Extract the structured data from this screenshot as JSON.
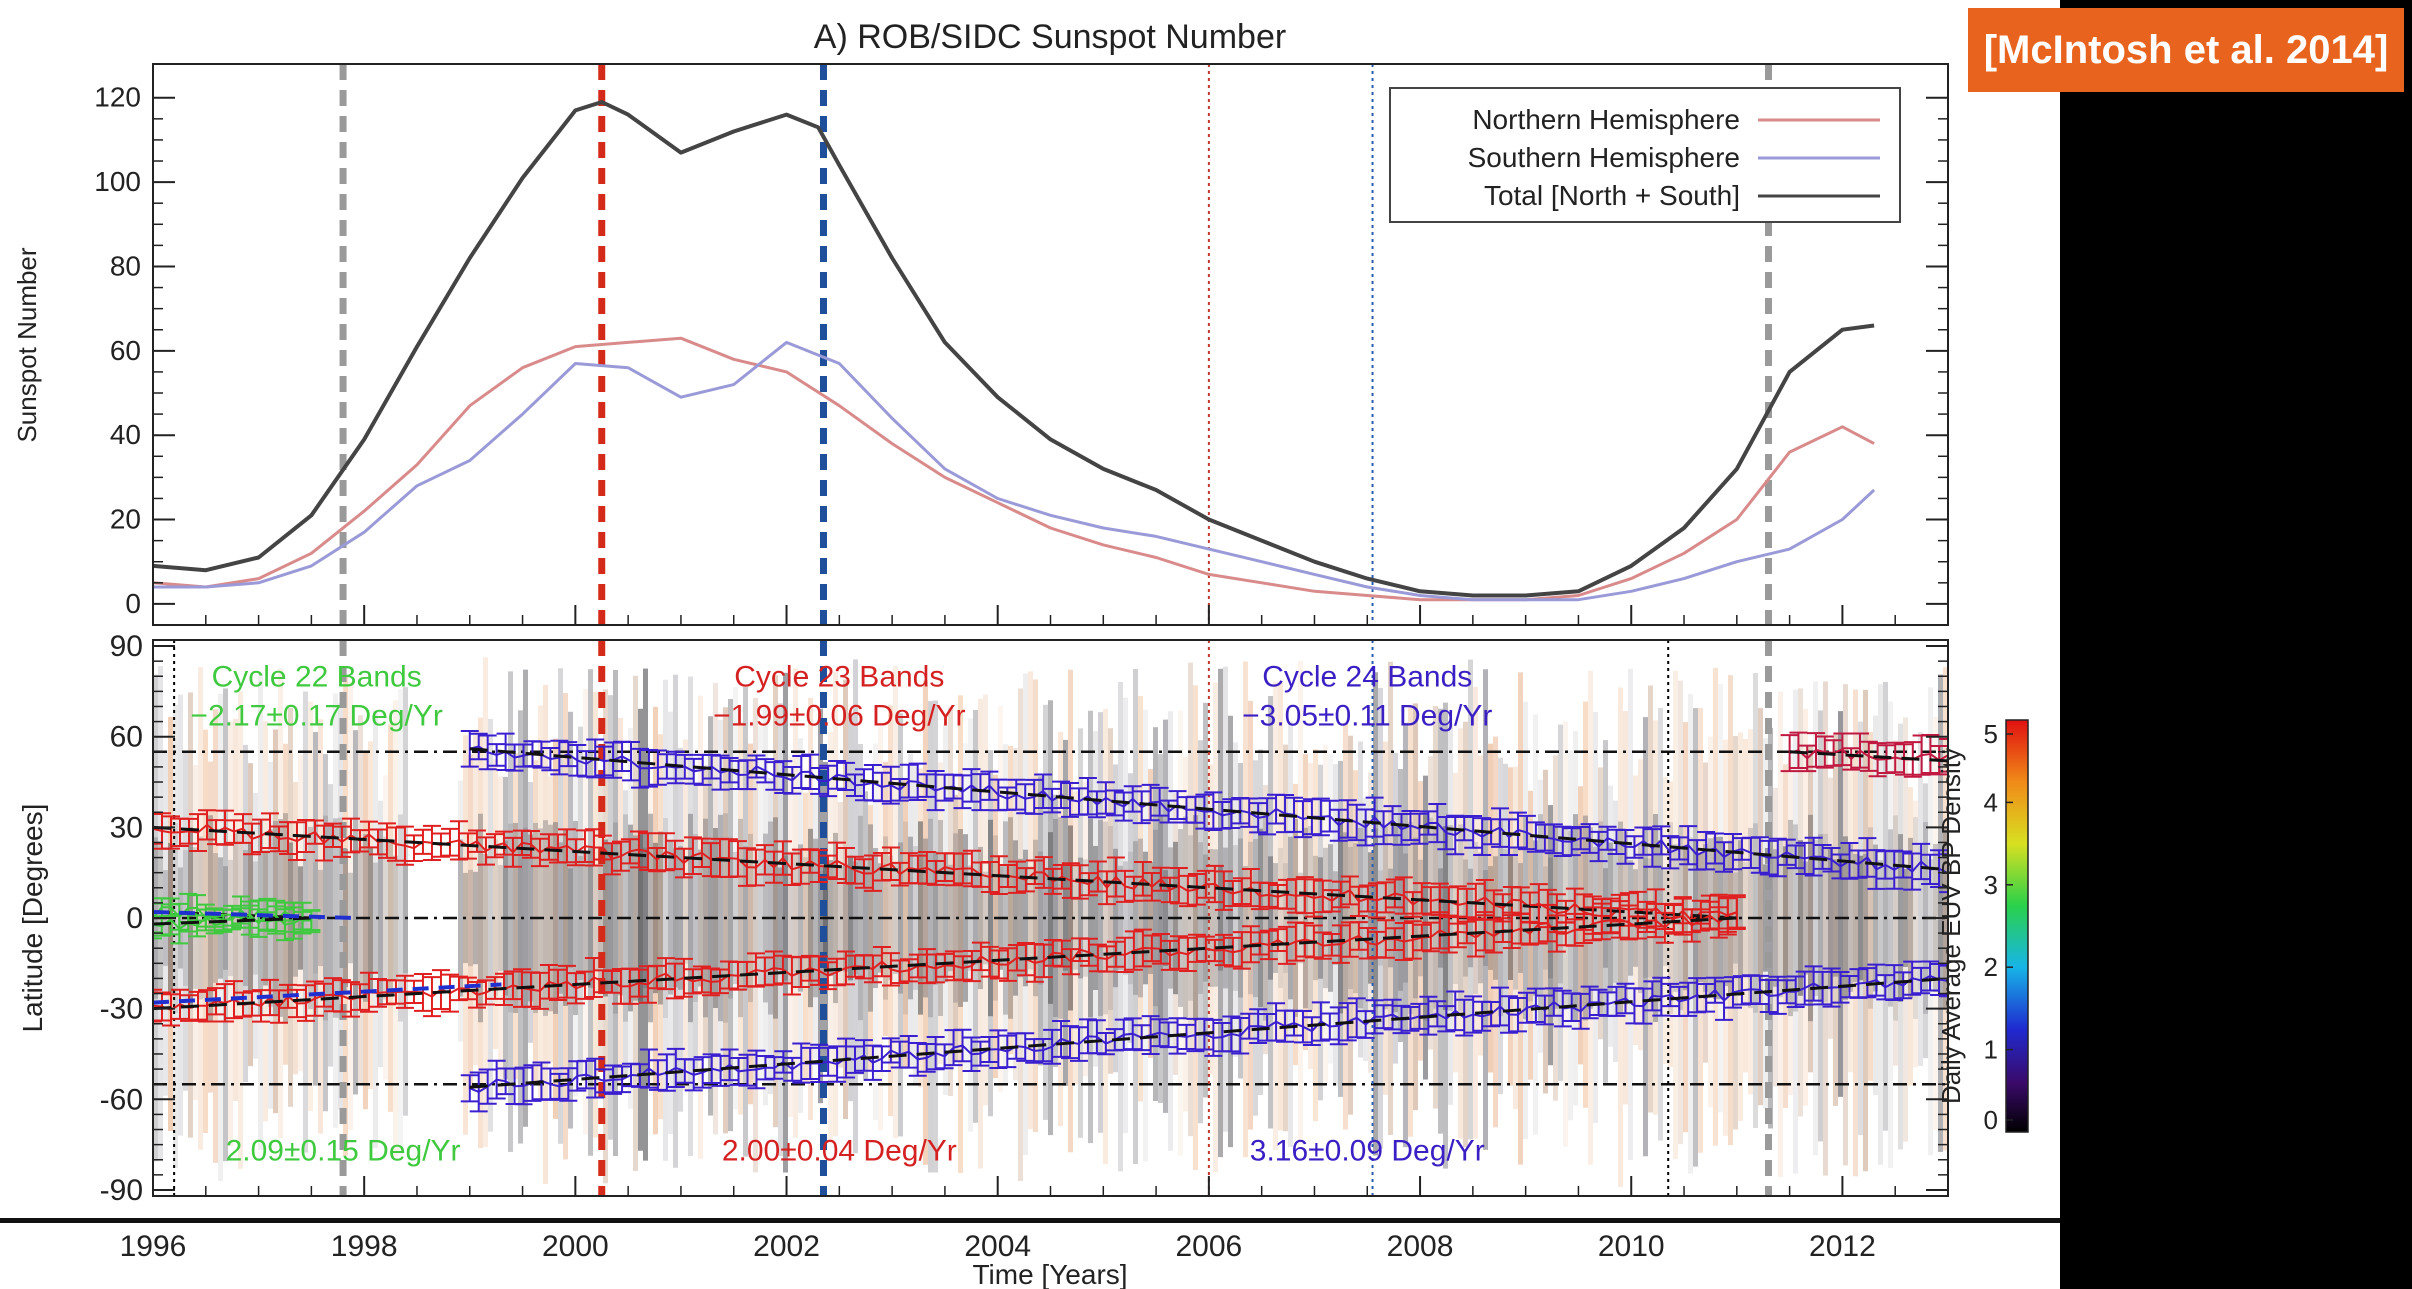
{
  "citation": "[McIntosh et al. 2014]",
  "chart_data": [
    {
      "type": "line",
      "title": "A) ROB/SIDC Sunspot Number",
      "xlabel": "",
      "ylabel": "Sunspot Number",
      "xlim": [
        1996,
        2013
      ],
      "ylim": [
        -5,
        128
      ],
      "yticks": [
        0,
        20,
        40,
        60,
        80,
        100,
        120
      ],
      "legend": "top-right",
      "series": [
        {
          "name": "Northern Hemisphere",
          "color": "#d98a8a",
          "x": [
            1996,
            1996.5,
            1997,
            1997.5,
            1998,
            1998.5,
            1999,
            1999.5,
            2000,
            2000.5,
            2001,
            2001.5,
            2002,
            2002.5,
            2003,
            2003.5,
            2004,
            2004.5,
            2005,
            2005.5,
            2006,
            2006.5,
            2007,
            2007.5,
            2008,
            2008.5,
            2009,
            2009.5,
            2010,
            2010.5,
            2011,
            2011.5,
            2012,
            2012.3
          ],
          "y": [
            5,
            4,
            6,
            12,
            22,
            33,
            47,
            56,
            61,
            62,
            63,
            58,
            55,
            47,
            38,
            30,
            24,
            18,
            14,
            11,
            7,
            5,
            3,
            2,
            1,
            1,
            1,
            2,
            6,
            12,
            20,
            36,
            42,
            38
          ]
        },
        {
          "name": "Southern Hemisphere",
          "color": "#9a9ad8",
          "x": [
            1996,
            1996.5,
            1997,
            1997.5,
            1998,
            1998.5,
            1999,
            1999.5,
            2000,
            2000.5,
            2001,
            2001.5,
            2002,
            2002.5,
            2003,
            2003.5,
            2004,
            2004.5,
            2005,
            2005.5,
            2006,
            2006.5,
            2007,
            2007.5,
            2008,
            2008.5,
            2009,
            2009.5,
            2010,
            2010.5,
            2011,
            2011.5,
            2012,
            2012.3
          ],
          "y": [
            4,
            4,
            5,
            9,
            17,
            28,
            34,
            45,
            57,
            56,
            49,
            52,
            62,
            57,
            44,
            32,
            25,
            21,
            18,
            16,
            13,
            10,
            7,
            4,
            2,
            1,
            1,
            1,
            3,
            6,
            10,
            13,
            20,
            27
          ]
        },
        {
          "name": "Total [North + South]",
          "color": "#444444",
          "x": [
            1996,
            1996.5,
            1997,
            1997.5,
            1998,
            1998.5,
            1999,
            1999.5,
            2000,
            2000.25,
            2000.5,
            2001,
            2001.5,
            2002,
            2002.3,
            2002.5,
            2003,
            2003.5,
            2004,
            2004.5,
            2005,
            2005.5,
            2006,
            2006.5,
            2007,
            2007.5,
            2008,
            2008.5,
            2009,
            2009.5,
            2010,
            2010.5,
            2011,
            2011.5,
            2012,
            2012.3
          ],
          "y": [
            9,
            8,
            11,
            21,
            39,
            61,
            82,
            101,
            117,
            119,
            116,
            107,
            112,
            116,
            113,
            104,
            82,
            62,
            49,
            39,
            32,
            27,
            20,
            15,
            10,
            6,
            3,
            2,
            2,
            3,
            9,
            18,
            32,
            55,
            65,
            66
          ]
        }
      ],
      "vlines": [
        {
          "x": 1997.8,
          "color": "#9a9a9a",
          "style": "dashed-thick"
        },
        {
          "x": 2000.25,
          "color": "#d42a1a",
          "style": "dashed-thick"
        },
        {
          "x": 2002.35,
          "color": "#1f4f9a",
          "style": "dashed-thick"
        },
        {
          "x": 2006.0,
          "color": "#c0392b",
          "style": "dotted"
        },
        {
          "x": 2007.55,
          "color": "#2a5db0",
          "style": "dotted"
        },
        {
          "x": 2011.3,
          "color": "#9a9a9a",
          "style": "dashed-thick"
        }
      ]
    },
    {
      "type": "scatter",
      "title": "",
      "xlabel": "Time [Years]",
      "ylabel": "Latitude [Degrees]",
      "xlim": [
        1996,
        2013
      ],
      "ylim": [
        -92,
        92
      ],
      "xticks": [
        1996,
        1998,
        2000,
        2002,
        2004,
        2006,
        2008,
        2010,
        2012
      ],
      "yticks": [
        -90,
        -60,
        -30,
        0,
        30,
        60,
        90
      ],
      "colorbar": {
        "label": "Daily Average EUV BP Density",
        "range": [
          0,
          5
        ],
        "ticks": [
          0,
          1,
          2,
          3,
          4,
          5
        ]
      },
      "hlines": [
        55,
        0,
        -55
      ],
      "annotations": [
        {
          "text": "Cycle 22 Bands",
          "color": "#3ec93e"
        },
        {
          "text": "−2.17±0.17 Deg/Yr",
          "color": "#3ec93e"
        },
        {
          "text": "2.09±0.15 Deg/Yr",
          "color": "#3ec93e"
        },
        {
          "text": "Cycle 23 Bands",
          "color": "#d42020"
        },
        {
          "text": "−1.99±0.06 Deg/Yr",
          "color": "#d42020"
        },
        {
          "text": "2.00±0.04 Deg/Yr",
          "color": "#d42020"
        },
        {
          "text": "Cycle 24 Bands",
          "color": "#3a1fc4"
        },
        {
          "text": "−3.05±0.11 Deg/Yr",
          "color": "#3a1fc4"
        },
        {
          "text": "3.16±0.09 Deg/Yr",
          "color": "#3a1fc4"
        }
      ],
      "bands": [
        {
          "name": "cycle22-north",
          "color": "#3ec93e",
          "x0": 1996.0,
          "x1": 1997.5,
          "lat0": 2,
          "lat1": 0,
          "err": 4
        },
        {
          "name": "cycle22-south",
          "color": "#3ec93e",
          "x0": 1996.0,
          "x1": 1997.5,
          "lat0": -2,
          "lat1": 0,
          "err": 4
        },
        {
          "name": "cycle23-north",
          "color": "#e02020",
          "x0": 1996.0,
          "x1": 2011.0,
          "lat0": 30,
          "lat1": 0,
          "err": 5
        },
        {
          "name": "cycle23-south",
          "color": "#e02020",
          "x0": 1996.0,
          "x1": 2011.0,
          "lat0": -30,
          "lat1": 0,
          "err": 5
        },
        {
          "name": "cycle24-north",
          "color": "#3a1fd0",
          "x0": 1999.0,
          "x1": 2013.0,
          "lat0": 56,
          "lat1": 16,
          "err": 5
        },
        {
          "name": "cycle24-south",
          "color": "#3a1fd0",
          "x0": 1999.0,
          "x1": 2013.0,
          "lat0": -56,
          "lat1": -20,
          "err": 5
        },
        {
          "name": "cycle25-north",
          "color": "#c01840",
          "x0": 2011.5,
          "x1": 2013.0,
          "lat0": 55,
          "lat1": 52,
          "err": 5
        }
      ],
      "vlines": [
        {
          "x": 1996.2,
          "color": "#000000",
          "style": "dotted"
        },
        {
          "x": 1997.8,
          "color": "#9a9a9a",
          "style": "dashed-thick"
        },
        {
          "x": 2000.25,
          "color": "#d42a1a",
          "style": "dashed-thick"
        },
        {
          "x": 2002.35,
          "color": "#1f4f9a",
          "style": "dashed-thick"
        },
        {
          "x": 2006.0,
          "color": "#c0392b",
          "style": "dotted"
        },
        {
          "x": 2007.55,
          "color": "#2a5db0",
          "style": "dotted"
        },
        {
          "x": 2010.35,
          "color": "#000000",
          "style": "dotted"
        },
        {
          "x": 2011.3,
          "color": "#9a9a9a",
          "style": "dashed-thick"
        }
      ]
    }
  ]
}
